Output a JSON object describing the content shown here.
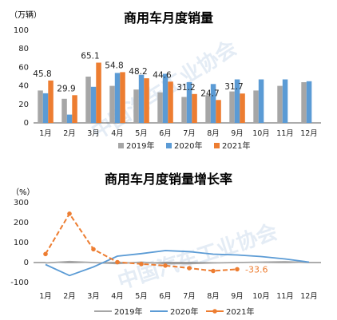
{
  "colors": {
    "s2019": "#a6a6a6",
    "s2020": "#5b9bd5",
    "s2021": "#ed7d31",
    "axis": "#595959",
    "text": "#222222",
    "watermark": "#e4ecf5"
  },
  "watermark_text": "中国汽车工业协会",
  "chart_data": [
    {
      "type": "bar",
      "title": "商用车月度销量",
      "ylabel": "（万辆）",
      "ylim": [
        0,
        100
      ],
      "yticks": [
        0,
        20,
        40,
        60,
        80,
        100
      ],
      "categories": [
        "1月",
        "2月",
        "3月",
        "4月",
        "5月",
        "6月",
        "7月",
        "8月",
        "9月",
        "10月",
        "11月",
        "12月"
      ],
      "series": [
        {
          "name": "2019年",
          "values": [
            35,
            26,
            50,
            40,
            36,
            33,
            28,
            30,
            34,
            35,
            40,
            44
          ]
        },
        {
          "name": "2020年",
          "values": [
            32,
            9,
            39,
            54,
            52,
            53,
            44,
            42,
            47,
            47,
            47,
            45
          ]
        },
        {
          "name": "2021年",
          "values": [
            45.8,
            29.9,
            65.1,
            54.8,
            48.2,
            44.6,
            31.2,
            24.7,
            31.7,
            null,
            null,
            null
          ]
        }
      ],
      "data_labels": [
        "45.8",
        "29.9",
        "65.1",
        "54.8",
        "48.2",
        "44.6",
        "31.2",
        "24.7",
        "31.7"
      ],
      "legend": "bottom",
      "grid": false
    },
    {
      "type": "line",
      "title": "商用车月度销量增长率",
      "ylabel": "（%）",
      "ylim": [
        -100,
        300
      ],
      "yticks": [
        -100,
        0,
        100,
        200,
        300
      ],
      "categories": [
        "1月",
        "2月",
        "3月",
        "4月",
        "5月",
        "6月",
        "7月",
        "8月",
        "9月",
        "10月",
        "11月",
        "12月"
      ],
      "series": [
        {
          "name": "2019年",
          "values": [
            -2,
            5,
            0,
            -5,
            2,
            -5,
            -5,
            -2,
            0,
            2,
            4,
            0
          ]
        },
        {
          "name": "2020年",
          "values": [
            -10,
            -65,
            -22,
            32,
            45,
            60,
            55,
            42,
            38,
            30,
            18,
            2
          ]
        },
        {
          "name": "2021年",
          "values": [
            43,
            245,
            67,
            2,
            -7,
            -15,
            -28,
            -42,
            -33.6,
            null,
            null,
            null
          ]
        }
      ],
      "end_label": "-33.6",
      "legend": "bottom",
      "grid": false
    }
  ]
}
